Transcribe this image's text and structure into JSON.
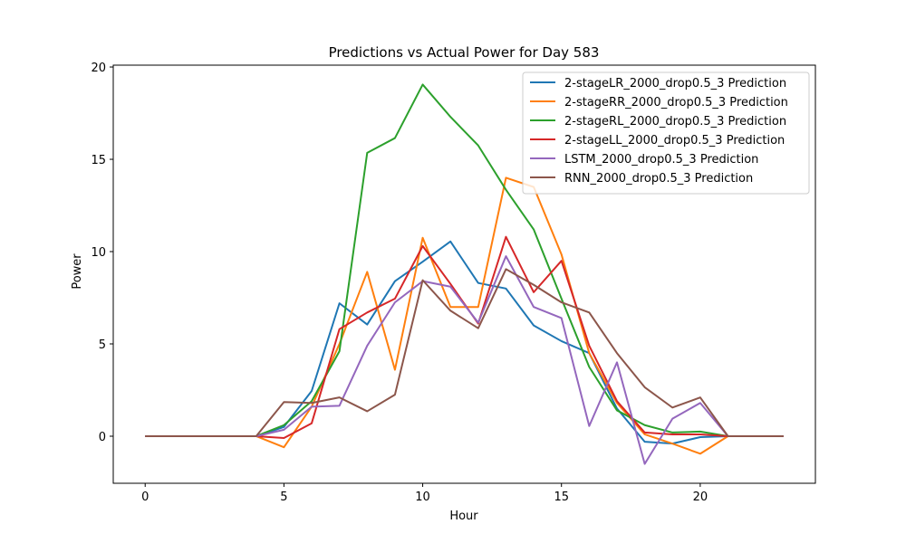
{
  "chart_data": {
    "type": "line",
    "title": "Predictions vs Actual Power for Day 583",
    "xlabel": "Hour",
    "ylabel": "Power",
    "xlim": [
      -1.15,
      24.15
    ],
    "ylim": [
      -2.55,
      20.1
    ],
    "xticks": [
      0,
      5,
      10,
      15,
      20
    ],
    "yticks": [
      0,
      5,
      10,
      15,
      20
    ],
    "grid": false,
    "legend_position": "top-right",
    "x": [
      0,
      1,
      2,
      3,
      4,
      5,
      6,
      7,
      8,
      9,
      10,
      11,
      12,
      13,
      14,
      15,
      16,
      17,
      18,
      19,
      20,
      21,
      22,
      23
    ],
    "series": [
      {
        "name": "2-stageLR_2000_drop0.5_3 Prediction",
        "color": "#1f77b4",
        "values": [
          0,
          0,
          0,
          0,
          0,
          0.5,
          2.45,
          7.2,
          6.05,
          8.4,
          9.45,
          10.55,
          8.3,
          8.0,
          6.0,
          5.15,
          4.5,
          1.5,
          -0.3,
          -0.4,
          -0.05,
          0,
          0,
          0
        ]
      },
      {
        "name": "2-stageRR_2000_drop0.5_3 Prediction",
        "color": "#ff7f0e",
        "values": [
          0,
          0,
          0,
          0,
          0,
          -0.6,
          1.6,
          5.0,
          8.9,
          3.6,
          10.75,
          7.0,
          7.0,
          14.0,
          13.5,
          9.85,
          4.5,
          1.8,
          0.1,
          -0.4,
          -0.95,
          0,
          0,
          0
        ]
      },
      {
        "name": "2-stageRL_2000_drop0.5_3 Prediction",
        "color": "#2ca02c",
        "values": [
          0,
          0,
          0,
          0,
          0,
          0.6,
          1.9,
          4.6,
          15.35,
          16.15,
          19.05,
          17.3,
          15.75,
          13.35,
          11.2,
          7.45,
          3.75,
          1.4,
          0.6,
          0.2,
          0.25,
          0,
          0,
          0
        ]
      },
      {
        "name": "2-stageLL_2000_drop0.5_3 Prediction",
        "color": "#d62728",
        "values": [
          0,
          0,
          0,
          0,
          0,
          -0.1,
          0.7,
          5.8,
          6.7,
          7.45,
          10.3,
          8.25,
          6.1,
          10.8,
          7.8,
          9.5,
          4.9,
          1.9,
          0.2,
          0.1,
          0.1,
          0,
          0,
          0
        ]
      },
      {
        "name": "LSTM_2000_drop0.5_3 Prediction",
        "color": "#9467bd",
        "values": [
          0,
          0,
          0,
          0,
          0,
          0.35,
          1.6,
          1.65,
          4.9,
          7.25,
          8.4,
          8.1,
          6.15,
          9.75,
          7.0,
          6.4,
          0.55,
          4.0,
          -1.5,
          0.95,
          1.8,
          0,
          0,
          0
        ]
      },
      {
        "name": "RNN_2000_drop0.5_3 Prediction",
        "color": "#8c564b",
        "values": [
          0,
          0,
          0,
          0,
          0,
          1.85,
          1.8,
          2.1,
          1.35,
          2.25,
          8.45,
          6.8,
          5.85,
          9.05,
          8.2,
          7.25,
          6.7,
          4.5,
          2.65,
          1.55,
          2.1,
          0,
          0,
          0
        ]
      }
    ]
  }
}
